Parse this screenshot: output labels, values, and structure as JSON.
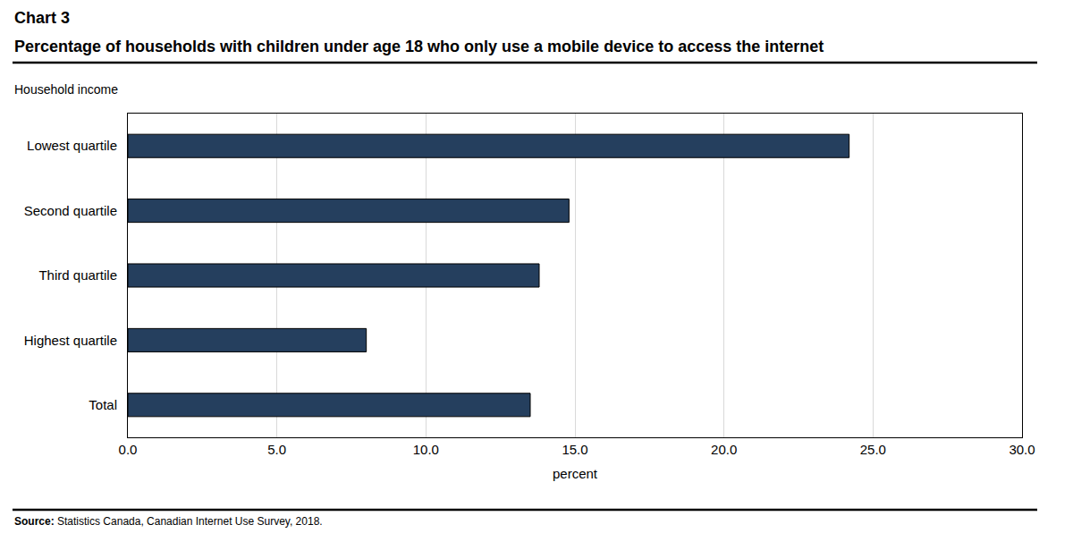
{
  "chart_data": {
    "type": "bar",
    "orientation": "horizontal",
    "title": "Chart 3",
    "subtitle": "Percentage of households with children under age 18 who only use a mobile device to access the internet",
    "y_label": "Household income",
    "x_label": "percent",
    "source": "Source: Statistics Canada, Canadian Internet Use Survey, 2018.",
    "categories": [
      "Lowest quartile",
      "Second quartile",
      "Third quartile",
      "Highest quartile",
      "Total"
    ],
    "values": [
      24.2,
      14.8,
      13.8,
      8.0,
      13.5
    ],
    "color": "#253f5e",
    "xlim": [
      0,
      30
    ],
    "xticks": [
      {
        "value": 0,
        "label": "0.0"
      },
      {
        "value": 5,
        "label": "5.0"
      },
      {
        "value": 10,
        "label": "10.0"
      },
      {
        "value": 15,
        "label": "15.0"
      },
      {
        "value": 20,
        "label": "20.0"
      },
      {
        "value": 25,
        "label": "25.0"
      },
      {
        "value": 30,
        "label": "30.0"
      }
    ],
    "grid": true
  }
}
